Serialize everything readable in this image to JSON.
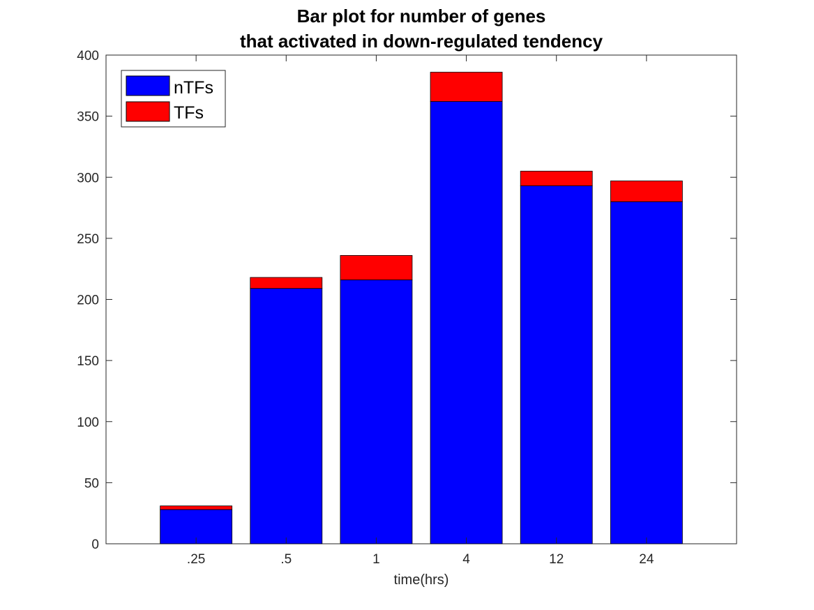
{
  "chart_data": {
    "type": "bar",
    "stacked": true,
    "title": [
      "Bar plot for number of genes",
      "that activated in down-regulated tendency"
    ],
    "xlabel": "time(hrs)",
    "ylabel": "",
    "categories": [
      ".25",
      ".5",
      "1",
      "4",
      "12",
      "24"
    ],
    "ylim": [
      0,
      400
    ],
    "yticks": [
      "0",
      "50",
      "100",
      "150",
      "200",
      "250",
      "300",
      "350",
      "400"
    ],
    "series": [
      {
        "name": "nTFs",
        "color": "#0000ff",
        "values": [
          28,
          209,
          216,
          362,
          293,
          280
        ]
      },
      {
        "name": "TFs",
        "color": "#ff0000",
        "values": [
          3,
          9,
          20,
          24,
          12,
          17
        ]
      }
    ],
    "legend": {
      "position": "top-left"
    },
    "grid": false
  }
}
